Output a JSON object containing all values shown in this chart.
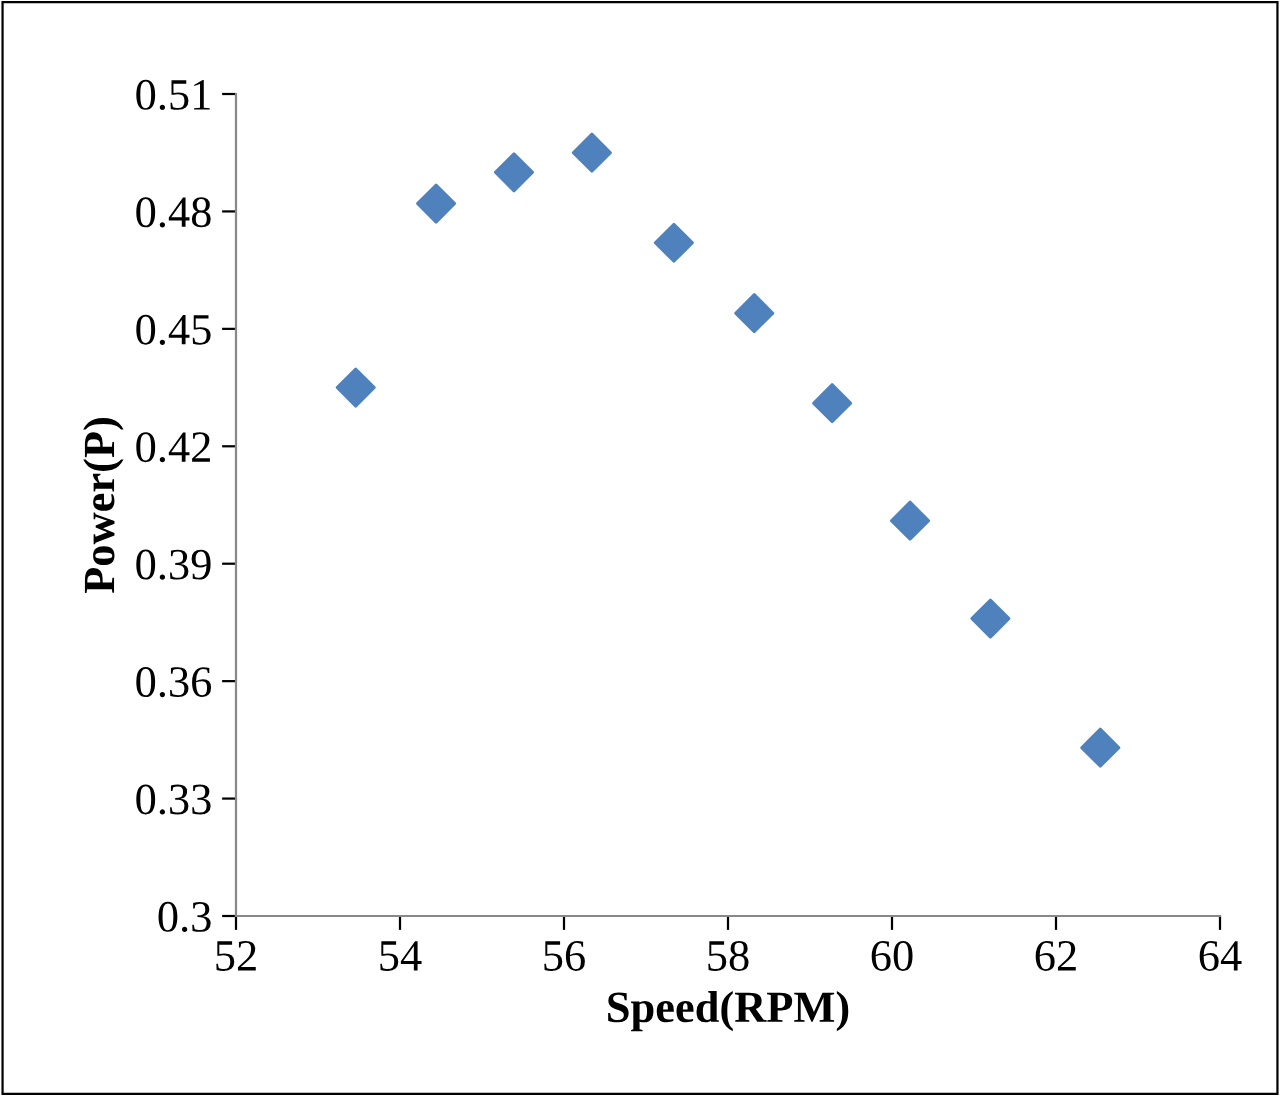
{
  "chart_data": {
    "type": "scatter",
    "xlabel": "Speed(RPM)",
    "ylabel": "Power(P)",
    "x": [
      53.46,
      54.44,
      55.39,
      56.34,
      57.34,
      58.32,
      59.27,
      60.22,
      61.2,
      62.54
    ],
    "series": [
      {
        "color": "#4f81bd",
        "values": [
          0.435,
          0.482,
          0.49,
          0.495,
          0.472,
          0.454,
          0.431,
          0.401,
          0.376,
          0.343
        ]
      }
    ],
    "xlim": [
      52,
      64
    ],
    "xticks": [
      52,
      54,
      56,
      58,
      60,
      62,
      64
    ],
    "ylim": [
      0.3,
      0.51
    ],
    "yticks": [
      {
        "value": 0.3,
        "label": "0.3"
      },
      {
        "value": 0.33,
        "label": "0.33"
      },
      {
        "value": 0.36,
        "label": "0.36"
      },
      {
        "value": 0.39,
        "label": "0.39"
      },
      {
        "value": 0.42,
        "label": "0.42"
      },
      {
        "value": 0.45,
        "label": "0.45"
      },
      {
        "value": 0.48,
        "label": "0.48"
      },
      {
        "value": 0.51,
        "label": "0.51"
      }
    ],
    "grid": false,
    "legend": false,
    "marker": "diamond"
  }
}
